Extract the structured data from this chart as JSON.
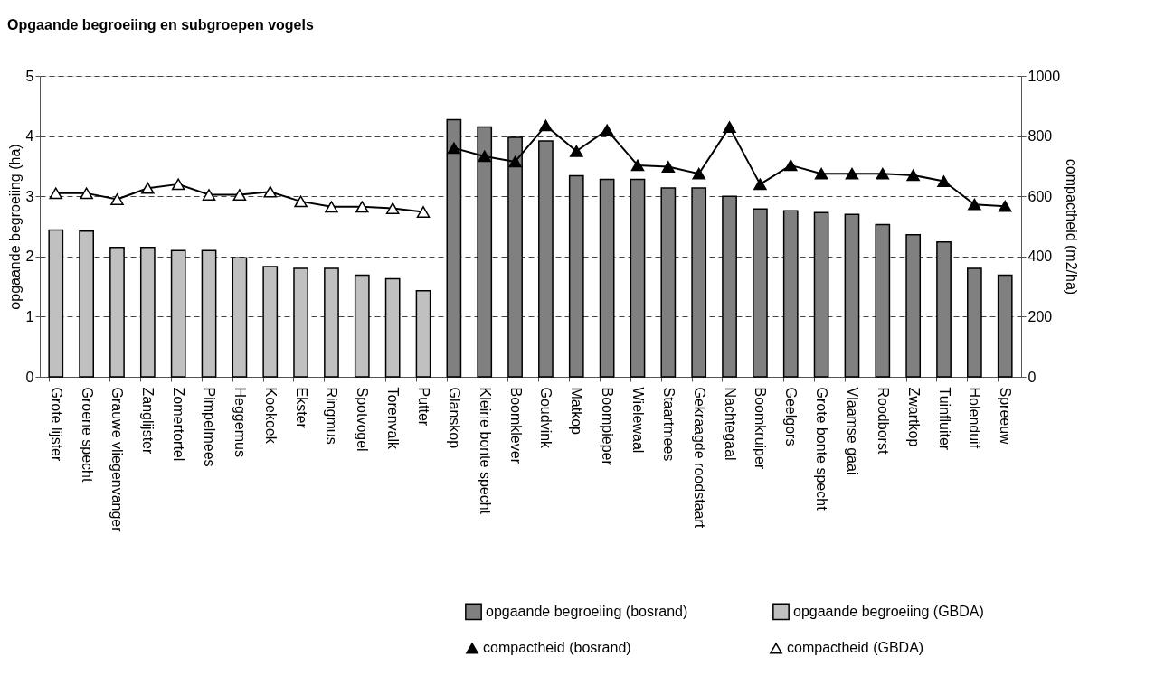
{
  "chart_data": {
    "type": "bar",
    "title": "Opgaande begroeiing en subgroepen vogels",
    "ylabel": "opgaande begroeiing (ha)",
    "y2label": "compactheid (m2/ha)",
    "categories": [
      "Grote lijster",
      "Groene specht",
      "Grauwe vliegenvanger",
      "Zanglijster",
      "Zomertortel",
      "Pimpelmees",
      "Heggemus",
      "Koekoek",
      "Ekster",
      "Ringmus",
      "Spotvogel",
      "Torenvalk",
      "Putter",
      "Glanskop",
      "Kleine bonte specht",
      "Boomklever",
      "Goudvink",
      "Matkop",
      "Boompieper",
      "Wielewaal",
      "Staartmees",
      "Gekraagde roodstaart",
      "Nachtegaal",
      "Boomkruiper",
      "Geelgors",
      "Grote bonte specht",
      "Vlaamse gaai",
      "Roodborst",
      "Zwartkop",
      "Tuinfluiter",
      "Holenduif",
      "Spreeuw"
    ],
    "series": [
      {
        "name": "opgaande begroeiing (bosrand)",
        "color": "#808080",
        "values": [
          null,
          null,
          null,
          null,
          null,
          null,
          null,
          null,
          null,
          null,
          null,
          null,
          null,
          4.27,
          4.15,
          3.98,
          3.92,
          3.34,
          3.28,
          3.28,
          3.14,
          3.14,
          3.0,
          2.79,
          2.76,
          2.73,
          2.7,
          2.53,
          2.36,
          2.24,
          1.8,
          1.69
        ]
      },
      {
        "name": "opgaande begroeiing (GBDA)",
        "color": "#c0c0c0",
        "values": [
          2.44,
          2.42,
          2.15,
          2.15,
          2.1,
          2.1,
          1.98,
          1.83,
          1.8,
          1.8,
          1.69,
          1.63,
          1.43,
          null,
          null,
          null,
          null,
          null,
          null,
          null,
          null,
          null,
          null,
          null,
          null,
          null,
          null,
          null,
          null,
          null,
          null,
          null
        ]
      },
      {
        "name": "compactheid (bosrand)",
        "type": "line",
        "axis": "y2",
        "color": "#000000",
        "values": [
          null,
          null,
          null,
          null,
          null,
          null,
          null,
          null,
          null,
          null,
          null,
          null,
          null,
          760,
          733,
          715,
          835,
          750,
          820,
          703,
          698,
          675,
          830,
          640,
          703,
          675,
          675,
          675,
          670,
          650,
          573,
          567
        ]
      },
      {
        "name": "compactheid (GBDA)",
        "type": "line",
        "axis": "y2",
        "color": "#000000",
        "values": [
          610,
          610,
          590,
          627,
          640,
          605,
          605,
          615,
          583,
          565,
          565,
          560,
          548,
          null,
          null,
          null,
          null,
          null,
          null,
          null,
          null,
          null,
          null,
          null,
          null,
          null,
          null,
          null,
          null,
          null,
          null,
          null
        ]
      }
    ],
    "ylim": [
      0,
      5
    ],
    "yticks": [
      0,
      1,
      2,
      3,
      4,
      5
    ],
    "y2lim": [
      0,
      1000
    ],
    "y2ticks": [
      0,
      200,
      400,
      600,
      800,
      1000
    ],
    "grid": "y",
    "legend": "bottom",
    "marker": "triangle"
  }
}
